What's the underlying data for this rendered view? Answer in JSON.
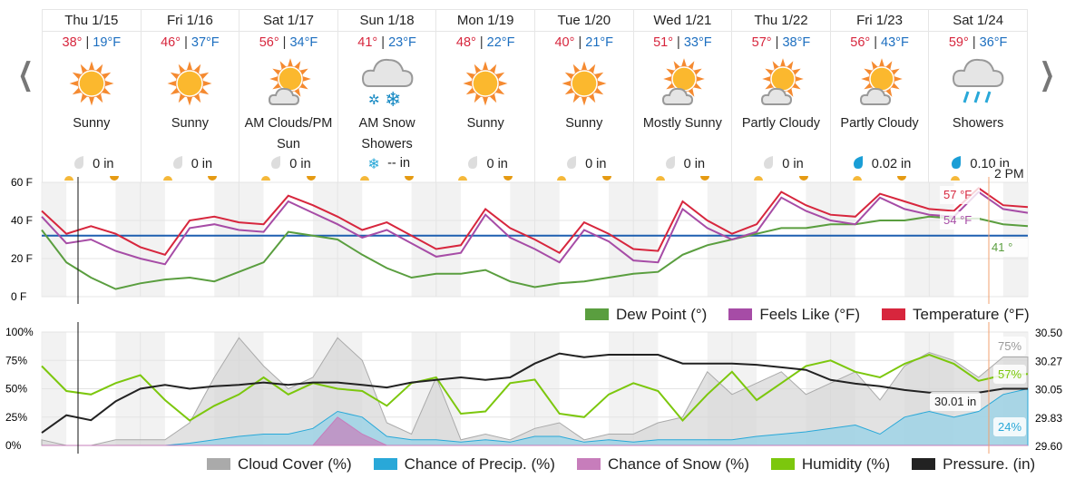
{
  "nav": {
    "prev_icon": "chevron-left-icon",
    "next_icon": "chevron-right-icon"
  },
  "days": [
    {
      "name": "Thu 1/15",
      "hi": "38°",
      "lo": "19°F",
      "icon": "sun",
      "cond": "Sunny",
      "precip": "0 in",
      "precip_icon": "drop-gray"
    },
    {
      "name": "Fri 1/16",
      "hi": "46°",
      "lo": "37°F",
      "icon": "sun",
      "cond": "Sunny",
      "precip": "0 in",
      "precip_icon": "drop-gray"
    },
    {
      "name": "Sat 1/17",
      "hi": "56°",
      "lo": "34°F",
      "icon": "sun-cloud",
      "cond": "AM Clouds/PM Sun",
      "precip": "0 in",
      "precip_icon": "drop-gray"
    },
    {
      "name": "Sun 1/18",
      "hi": "41°",
      "lo": "23°F",
      "icon": "snow",
      "cond": "AM Snow Showers",
      "precip": "-- in",
      "precip_icon": "snowflake"
    },
    {
      "name": "Mon 1/19",
      "hi": "48°",
      "lo": "22°F",
      "icon": "sun",
      "cond": "Sunny",
      "precip": "0 in",
      "precip_icon": "drop-gray"
    },
    {
      "name": "Tue 1/20",
      "hi": "40°",
      "lo": "21°F",
      "icon": "sun",
      "cond": "Sunny",
      "precip": "0 in",
      "precip_icon": "drop-gray"
    },
    {
      "name": "Wed 1/21",
      "hi": "51°",
      "lo": "33°F",
      "icon": "sun-cloud",
      "cond": "Mostly Sunny",
      "precip": "0 in",
      "precip_icon": "drop-gray"
    },
    {
      "name": "Thu 1/22",
      "hi": "57°",
      "lo": "38°F",
      "icon": "sun-cloud",
      "cond": "Partly Cloudy",
      "precip": "0 in",
      "precip_icon": "drop-gray"
    },
    {
      "name": "Fri 1/23",
      "hi": "56°",
      "lo": "43°F",
      "icon": "sun-cloud",
      "cond": "Partly Cloudy",
      "precip": "0.02 in",
      "precip_icon": "drop-blue"
    },
    {
      "name": "Sat 1/24",
      "hi": "59°",
      "lo": "36°F",
      "icon": "rain",
      "cond": "Showers",
      "precip": "0.10 in",
      "precip_icon": "drop-blue"
    }
  ],
  "colors": {
    "temp": "#d7263d",
    "feels": "#a64ca6",
    "dew": "#5a9e3f",
    "freeze": "#1d5fb0",
    "cloud": "#bdbdbd",
    "precip": "#29a8d8",
    "snow": "#c77dbb",
    "humidity": "#7cc70d",
    "pressure": "#222222",
    "cursor": "#f0a070"
  },
  "cursor_label": "2 PM",
  "chart_data": [
    {
      "type": "line",
      "title": "Temperature",
      "ylim": [
        0,
        60
      ],
      "yticks": [
        "60 F",
        "40 F",
        "20 F",
        "0 F"
      ],
      "x_unit": "hours from Thu 1/15 00:00, 6h step",
      "series": [
        {
          "name": "Dew Point (°)",
          "key": "dew",
          "values": [
            35,
            18,
            10,
            4,
            7,
            9,
            10,
            8,
            13,
            18,
            34,
            32,
            30,
            22,
            15,
            10,
            12,
            12,
            14,
            8,
            5,
            7,
            8,
            10,
            12,
            13,
            22,
            27,
            30,
            33,
            36,
            36,
            38,
            38,
            40,
            40,
            42,
            41,
            41,
            38,
            37
          ]
        },
        {
          "name": "Feels Like (°F)",
          "key": "feels",
          "values": [
            42,
            28,
            30,
            24,
            20,
            17,
            36,
            38,
            35,
            34,
            50,
            44,
            38,
            31,
            35,
            28,
            21,
            23,
            43,
            31,
            25,
            18,
            35,
            29,
            19,
            18,
            46,
            36,
            30,
            34,
            52,
            45,
            40,
            38,
            52,
            46,
            43,
            42,
            55,
            46,
            44
          ]
        },
        {
          "name": "Temperature (°F)",
          "key": "temp",
          "values": [
            45,
            33,
            37,
            33,
            26,
            22,
            40,
            42,
            39,
            38,
            53,
            48,
            42,
            35,
            39,
            32,
            25,
            27,
            46,
            36,
            30,
            23,
            39,
            33,
            25,
            24,
            50,
            40,
            33,
            38,
            55,
            48,
            43,
            42,
            54,
            50,
            46,
            45,
            57,
            48,
            47
          ]
        }
      ],
      "freezing": 32,
      "tooltips": [
        "57 °F",
        "54 °F",
        "41 °"
      ],
      "legend": [
        "Dew Point (°)",
        "Feels Like (°F)",
        "Temperature (°F)"
      ]
    },
    {
      "type": "area",
      "title": "Sky",
      "ylim": [
        0,
        100
      ],
      "yticks": [
        "100%",
        "75%",
        "50%",
        "25%",
        "0%"
      ],
      "y2lim": [
        29.6,
        30.5
      ],
      "y2ticks": [
        "30.50",
        "30.27",
        "30.05",
        "29.83",
        "29.60"
      ],
      "series": [
        {
          "name": "Cloud Cover (%)",
          "key": "cloud",
          "values": [
            5,
            0,
            0,
            5,
            5,
            5,
            20,
            60,
            95,
            70,
            50,
            60,
            95,
            75,
            20,
            10,
            60,
            5,
            10,
            5,
            15,
            20,
            5,
            10,
            10,
            20,
            25,
            65,
            45,
            55,
            65,
            45,
            55,
            65,
            40,
            70,
            82,
            75,
            60,
            78,
            78
          ]
        },
        {
          "name": "Chance of Precip. (%)",
          "key": "precip",
          "values": [
            0,
            0,
            0,
            0,
            0,
            0,
            2,
            5,
            8,
            10,
            10,
            15,
            30,
            25,
            8,
            5,
            5,
            3,
            5,
            3,
            8,
            8,
            3,
            5,
            3,
            5,
            5,
            5,
            5,
            8,
            10,
            12,
            15,
            18,
            10,
            25,
            30,
            25,
            30,
            45,
            50
          ]
        },
        {
          "name": "Chance of Snow (%)",
          "key": "snow",
          "values": [
            0,
            0,
            0,
            0,
            0,
            0,
            0,
            0,
            0,
            0,
            0,
            0,
            25,
            10,
            0,
            0,
            0,
            0,
            0,
            0,
            0,
            0,
            0,
            0,
            0,
            0,
            0,
            0,
            0,
            0,
            0,
            0,
            0,
            0,
            0,
            0,
            0,
            0,
            0,
            0,
            0
          ]
        },
        {
          "name": "Humidity (%)",
          "key": "humidity",
          "values": [
            70,
            48,
            45,
            55,
            62,
            40,
            22,
            35,
            45,
            60,
            45,
            55,
            50,
            48,
            35,
            55,
            60,
            28,
            30,
            55,
            58,
            28,
            25,
            45,
            55,
            48,
            22,
            45,
            65,
            40,
            55,
            70,
            75,
            65,
            60,
            72,
            80,
            72,
            57,
            62,
            63
          ]
        },
        {
          "name": "Pressure. (in)",
          "key": "pressure",
          "axis": "right",
          "values": [
            29.7,
            29.84,
            29.8,
            29.95,
            30.05,
            30.08,
            30.05,
            30.07,
            30.08,
            30.1,
            30.08,
            30.1,
            30.1,
            30.08,
            30.06,
            30.1,
            30.12,
            30.14,
            30.12,
            30.14,
            30.25,
            30.33,
            30.3,
            30.32,
            30.32,
            30.32,
            30.25,
            30.25,
            30.25,
            30.24,
            30.22,
            30.2,
            30.12,
            30.09,
            30.07,
            30.04,
            30.02,
            30.02,
            30.02,
            30.05,
            30.05
          ]
        }
      ],
      "tooltips": [
        "75%",
        "57%",
        "30.01 in",
        "24%"
      ],
      "legend": [
        "Cloud Cover (%)",
        "Chance of Precip. (%)",
        "Chance of Snow (%)",
        "Humidity (%)",
        "Pressure. (in)"
      ]
    }
  ]
}
